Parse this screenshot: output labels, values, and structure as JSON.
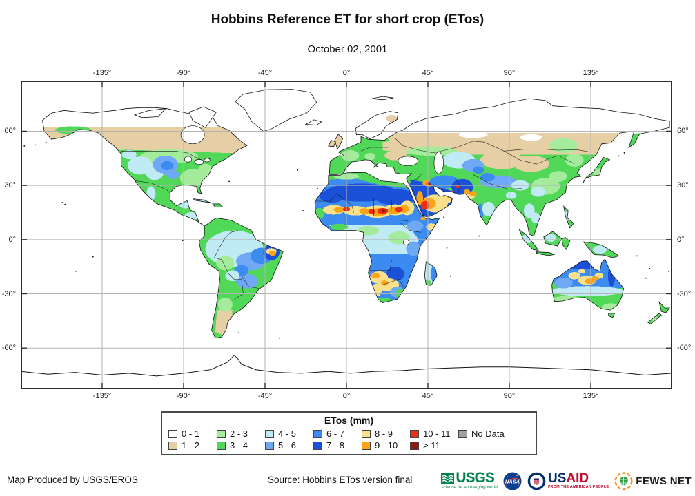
{
  "title": "Hobbins Reference ET for short crop (ETos)",
  "date": "October 02, 2001",
  "axes": {
    "lon": [
      {
        "value": -135,
        "label": "-135°"
      },
      {
        "value": -90,
        "label": "-90°"
      },
      {
        "value": -45,
        "label": "-45°"
      },
      {
        "value": 0,
        "label": "0°"
      },
      {
        "value": 45,
        "label": "45°"
      },
      {
        "value": 90,
        "label": "90°"
      },
      {
        "value": 135,
        "label": "135°"
      }
    ],
    "lat": [
      {
        "value": 60,
        "label": "60°"
      },
      {
        "value": 30,
        "label": "30°"
      },
      {
        "value": 0,
        "label": "0°"
      },
      {
        "value": -30,
        "label": "-30°"
      },
      {
        "value": -60,
        "label": "-60°"
      }
    ]
  },
  "legend": {
    "title": "ETos (mm)",
    "items": [
      {
        "key": "w",
        "label": "0 - 1",
        "color": "#ffffff"
      },
      {
        "key": "tan",
        "label": "1 - 2",
        "color": "#e6cfa4"
      },
      {
        "key": "lg",
        "label": "2 - 3",
        "color": "#a4ec9c"
      },
      {
        "key": "g",
        "label": "3 - 4",
        "color": "#52d858"
      },
      {
        "key": "cy",
        "label": "4 - 5",
        "color": "#c0eaf4"
      },
      {
        "key": "lb",
        "label": "5 - 6",
        "color": "#6fa8f4"
      },
      {
        "key": "mb",
        "label": "6 - 7",
        "color": "#3c8bf0"
      },
      {
        "key": "db",
        "label": "7 - 8",
        "color": "#1b50d8"
      },
      {
        "key": "y",
        "label": "8 - 9",
        "color": "#f9e08a"
      },
      {
        "key": "o",
        "label": "9 - 10",
        "color": "#faa41a"
      },
      {
        "key": "r",
        "label": "10 - 11",
        "color": "#ee2e10"
      },
      {
        "key": "dr",
        "label": "> 11",
        "color": "#8e1a12"
      },
      {
        "key": "nd",
        "label": "No Data",
        "color": "#a0a0a0"
      }
    ]
  },
  "footer": {
    "produced_by": "Map Produced by USGS/EROS",
    "source": "Source: Hobbins ETos version final"
  },
  "logos": {
    "usgs": {
      "text": "USGS",
      "tagline": "science for a changing world"
    },
    "nasa": {
      "text": "NASA"
    },
    "usaid": {
      "us": "US",
      "aid": "AID",
      "tagline": "FROM THE AMERICAN PEOPLE"
    },
    "fewsnet": {
      "text": "FEWS NET"
    }
  }
}
